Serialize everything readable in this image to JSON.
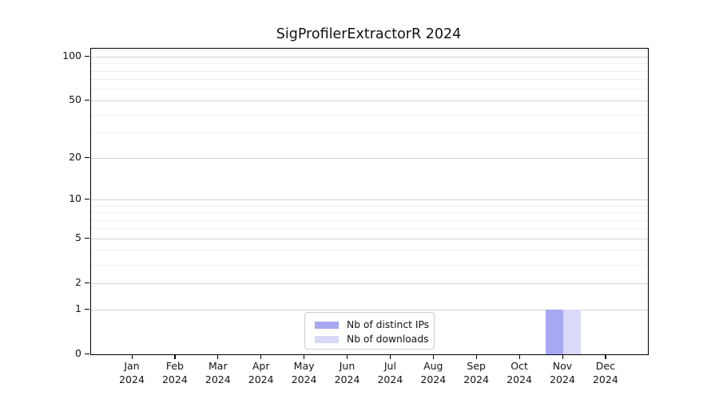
{
  "title": "SigProfilerExtractorR 2024",
  "chart_data": {
    "type": "bar",
    "x_categories": [
      {
        "month": "Jan",
        "year": "2024"
      },
      {
        "month": "Feb",
        "year": "2024"
      },
      {
        "month": "Mar",
        "year": "2024"
      },
      {
        "month": "Apr",
        "year": "2024"
      },
      {
        "month": "May",
        "year": "2024"
      },
      {
        "month": "Jun",
        "year": "2024"
      },
      {
        "month": "Jul",
        "year": "2024"
      },
      {
        "month": "Aug",
        "year": "2024"
      },
      {
        "month": "Sep",
        "year": "2024"
      },
      {
        "month": "Oct",
        "year": "2024"
      },
      {
        "month": "Nov",
        "year": "2024"
      },
      {
        "month": "Dec",
        "year": "2024"
      }
    ],
    "series": [
      {
        "name": "Nb of distinct IPs",
        "color": "#a8a8f2",
        "values": [
          0,
          0,
          0,
          0,
          0,
          0,
          0,
          0,
          0,
          0,
          1,
          0
        ]
      },
      {
        "name": "Nb of downloads",
        "color": "#dadaf8",
        "values": [
          0,
          0,
          0,
          0,
          0,
          0,
          0,
          0,
          0,
          0,
          1,
          0
        ]
      }
    ],
    "title": "SigProfilerExtractorR 2024",
    "xlabel": "",
    "ylabel": "",
    "y_axis": {
      "scale": "log10(value+1)",
      "major_ticks": [
        0,
        1,
        2,
        5,
        10,
        20,
        50,
        100
      ],
      "minor_gridlines": [
        3,
        4,
        6,
        7,
        8,
        9,
        30,
        40,
        60,
        70,
        80,
        90,
        110
      ],
      "ylim": [
        0,
        113
      ]
    },
    "grid": true,
    "legend_position": "bottom-center"
  }
}
